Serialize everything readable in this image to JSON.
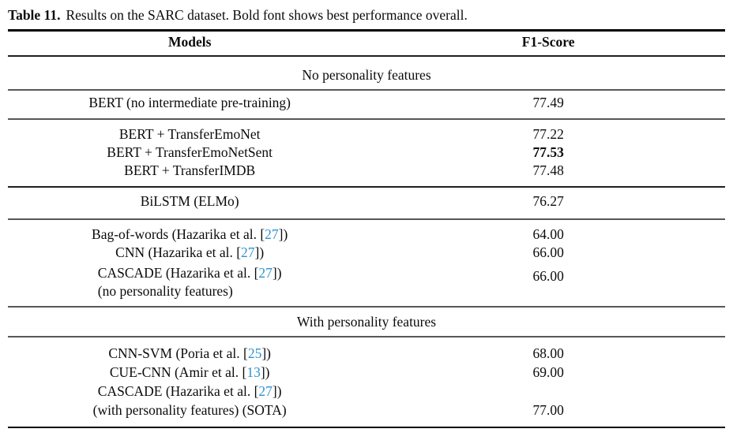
{
  "caption": {
    "label": "Table 11.",
    "body": "Results on the SARC dataset. Bold font shows best performance overall."
  },
  "header": {
    "models": "Models",
    "f1_score": "F1-Score"
  },
  "sections": {
    "no_personality": "No personality features",
    "with_personality": "With personality features"
  },
  "rows": {
    "bert_base": {
      "model": "BERT (no intermediate pre-training)",
      "f1": "77.49"
    },
    "bert_emonet": {
      "model": "BERT + TransferEmoNet",
      "f1": "77.22"
    },
    "bert_emonetsent": {
      "model": "BERT + TransferEmoNetSent",
      "f1": "77.53",
      "best": true
    },
    "bert_imdb": {
      "model": "BERT + TransferIMDB",
      "f1": "77.48"
    },
    "bilstm": {
      "model": "BiLSTM (ELMo)",
      "f1": "76.27"
    },
    "bow": {
      "pre": "Bag-of-words (Hazarika et al. [",
      "cite": "27",
      "post": "])",
      "f1": "64.00"
    },
    "cnn": {
      "pre": "CNN (Hazarika et al. [",
      "cite": "27",
      "post": "])",
      "f1": "66.00"
    },
    "cascade_no": {
      "pre": "CASCADE (Hazarika et al. [",
      "cite": "27",
      "post": "])",
      "line2": "(no personality features)",
      "f1": "66.00"
    },
    "cnn_svm": {
      "pre": "CNN-SVM (Poria et al. [",
      "cite": "25",
      "post": "])",
      "f1": "68.00"
    },
    "cue_cnn": {
      "pre": "CUE-CNN (Amir et al. [",
      "cite": "13",
      "post": "])",
      "f1": "69.00"
    },
    "cascade_with": {
      "pre": "CASCADE (Hazarika et al. [",
      "cite": "27",
      "post": "])",
      "line2": "(with personality features) (SOTA)",
      "f1": "77.00"
    }
  },
  "colors": {
    "citation_link": "#2E93D0",
    "rule_heavy": "#000000",
    "rule_light": "#575757"
  }
}
